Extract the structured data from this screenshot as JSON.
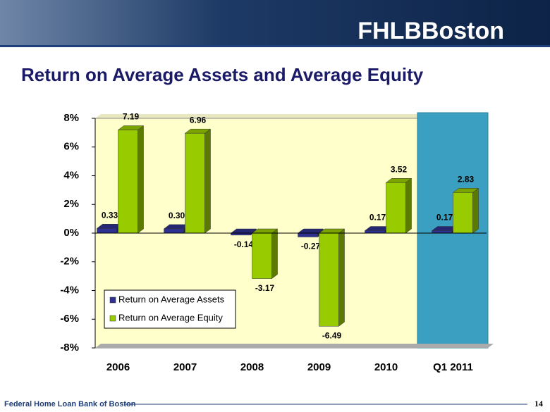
{
  "header": {
    "logo": "FHLBBoston"
  },
  "chart_data": {
    "type": "bar3d",
    "title": "Return on Average Assets and Average Equity",
    "categories": [
      "2006",
      "2007",
      "2008",
      "2009",
      "2010",
      "Q1 2011"
    ],
    "series": [
      {
        "name": "Return on Average Assets",
        "color": "#2e3192",
        "values": [
          0.33,
          0.3,
          -0.14,
          -0.27,
          0.17,
          0.17
        ],
        "value_labels": [
          "0.33",
          "0.30",
          "-0.14",
          "-0.27",
          "0.17",
          "0.17"
        ]
      },
      {
        "name": "Return on Average Equity",
        "color": "#99cc00",
        "values": [
          7.19,
          6.96,
          -3.17,
          -6.49,
          3.52,
          2.83
        ]
      }
    ],
    "ylim": [
      -8,
      8
    ],
    "yticks": [
      {
        "value": -8,
        "label": "-8%"
      },
      {
        "value": -6,
        "label": "-6%"
      },
      {
        "value": -4,
        "label": "-4%"
      },
      {
        "value": -2,
        "label": "-2%"
      },
      {
        "value": 0,
        "label": "0%"
      },
      {
        "value": 2,
        "label": "2%"
      },
      {
        "value": 4,
        "label": "4%"
      },
      {
        "value": 6,
        "label": "6%"
      },
      {
        "value": 8,
        "label": "8%"
      }
    ],
    "grid": false,
    "legend": "lower left"
  },
  "footer": {
    "text": "Federal Home Loan Bank of Boston",
    "page": "14"
  }
}
